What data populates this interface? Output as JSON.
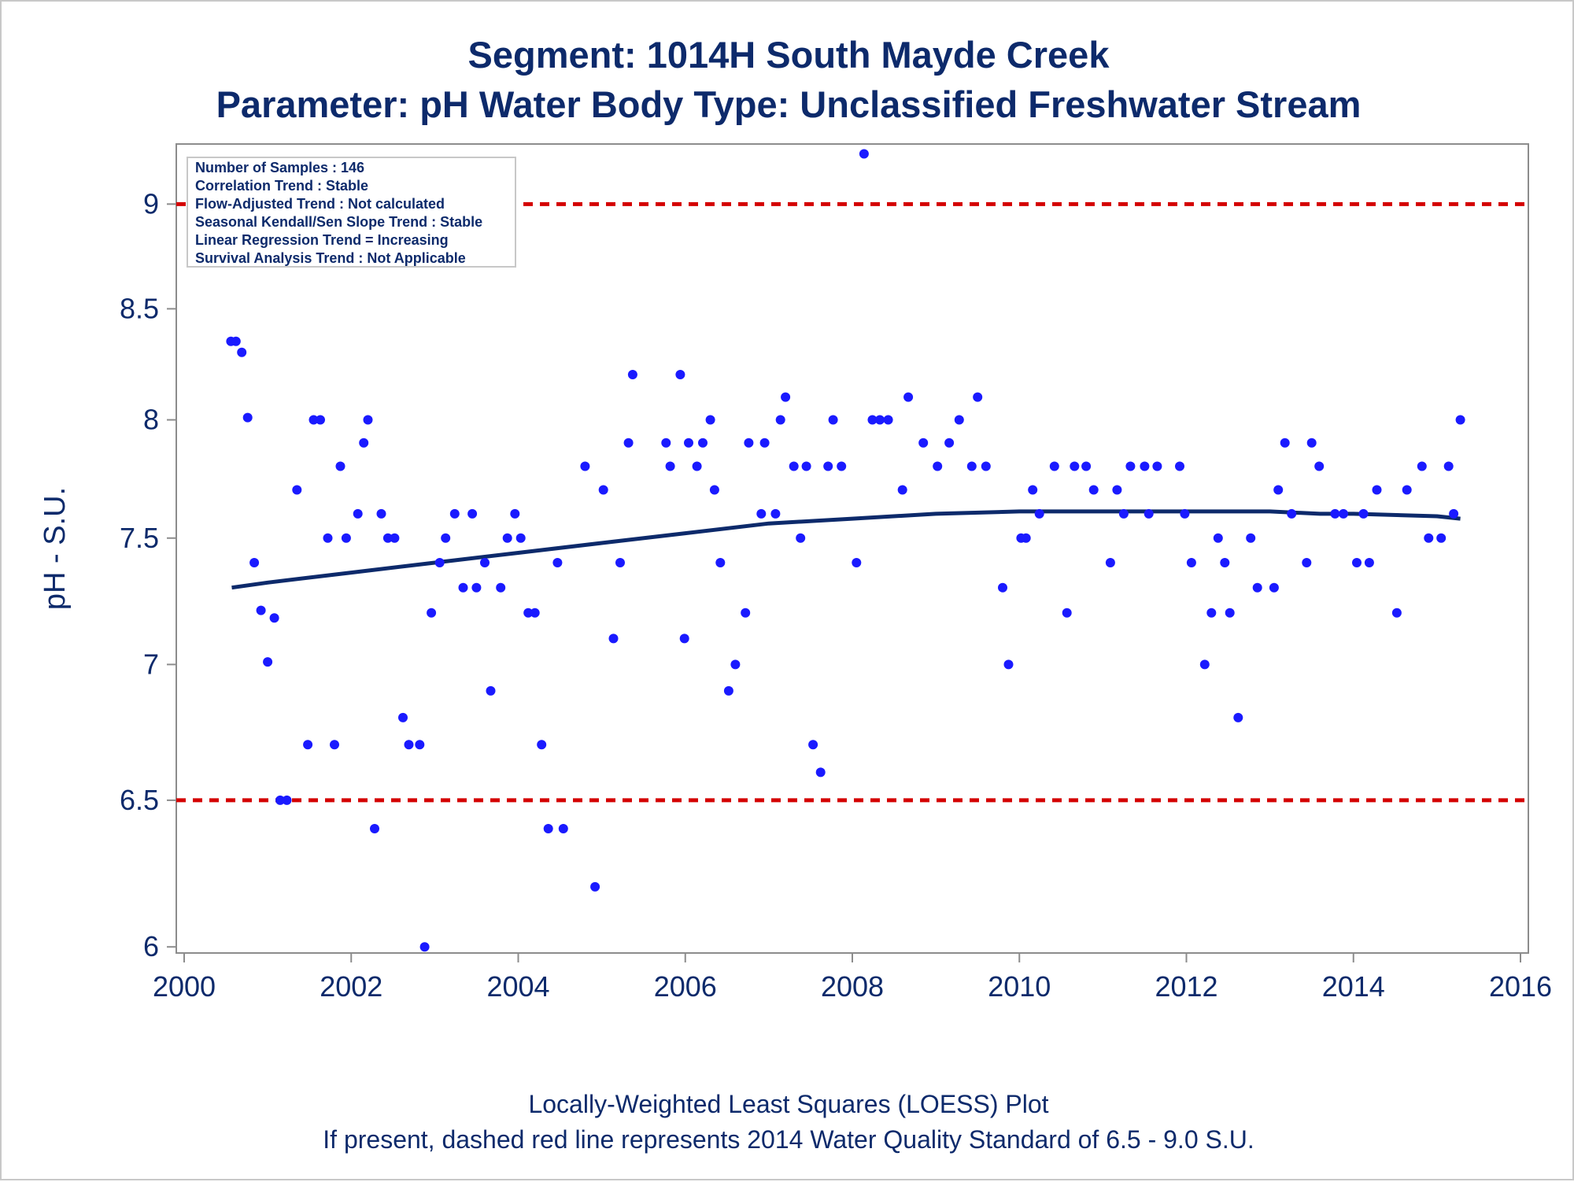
{
  "chart_data": {
    "type": "scatter",
    "title": "Segment: 1014H  South Mayde Creek",
    "subtitle": "Parameter: pH   Water Body Type: Unclassified Freshwater Stream",
    "xlabel": "",
    "ylabel": "pH - S.U.",
    "xlim": [
      2000,
      2016
    ],
    "ylim": [
      5.98,
      9.3
    ],
    "xticks": [
      "2000",
      "2002",
      "2004",
      "2006",
      "2008",
      "2010",
      "2012",
      "2014",
      "2016"
    ],
    "yticks": [
      "6",
      "6.5",
      "7",
      "7.5",
      "8",
      "8.5",
      "9"
    ],
    "y_scale": "log",
    "grid": false,
    "stats_box": [
      "Number of Samples : 146",
      "Correlation Trend : Stable",
      "Flow-Adjusted Trend : Not calculated",
      "Seasonal Kendall/Sen Slope Trend : Stable",
      "Linear Regression Trend = Increasing",
      "Survival Analysis Trend : Not Applicable"
    ],
    "footnotes": [
      "Locally-Weighted Least Squares (LOESS) Plot",
      "If present, dashed red line represents 2014 Water Quality Standard of 6.5 - 9.0 S.U."
    ],
    "standards": [
      {
        "value": 9.0,
        "style": "dashed",
        "color": "#d40000"
      },
      {
        "value": 6.5,
        "style": "dashed",
        "color": "#d40000"
      }
    ],
    "series": [
      {
        "type": "scatter",
        "color": "#1a1aff",
        "points": [
          [
            2000.56,
            8.35
          ],
          [
            2000.62,
            8.35
          ],
          [
            2000.69,
            8.3
          ],
          [
            2000.76,
            8.01
          ],
          [
            2000.84,
            7.4
          ],
          [
            2000.92,
            7.21
          ],
          [
            2001.0,
            7.01
          ],
          [
            2001.08,
            7.18
          ],
          [
            2001.15,
            6.5
          ],
          [
            2001.23,
            6.5
          ],
          [
            2001.35,
            7.7
          ],
          [
            2001.48,
            6.7
          ],
          [
            2001.55,
            8.0
          ],
          [
            2001.63,
            8.0
          ],
          [
            2001.72,
            7.5
          ],
          [
            2001.8,
            6.7
          ],
          [
            2001.87,
            7.8
          ],
          [
            2001.94,
            7.5
          ],
          [
            2002.08,
            7.6
          ],
          [
            2002.15,
            7.9
          ],
          [
            2002.2,
            8.0
          ],
          [
            2002.28,
            6.4
          ],
          [
            2002.36,
            7.6
          ],
          [
            2002.44,
            7.5
          ],
          [
            2002.52,
            7.5
          ],
          [
            2002.62,
            6.8
          ],
          [
            2002.69,
            6.7
          ],
          [
            2002.82,
            6.7
          ],
          [
            2002.88,
            6.0
          ],
          [
            2002.96,
            7.2
          ],
          [
            2003.06,
            7.4
          ],
          [
            2003.13,
            7.5
          ],
          [
            2003.24,
            7.6
          ],
          [
            2003.34,
            7.3
          ],
          [
            2003.45,
            7.6
          ],
          [
            2003.5,
            7.3
          ],
          [
            2003.6,
            7.4
          ],
          [
            2003.67,
            6.9
          ],
          [
            2003.79,
            7.3
          ],
          [
            2003.87,
            7.5
          ],
          [
            2003.96,
            7.6
          ],
          [
            2004.03,
            7.5
          ],
          [
            2004.12,
            7.2
          ],
          [
            2004.2,
            7.2
          ],
          [
            2004.28,
            6.7
          ],
          [
            2004.36,
            6.4
          ],
          [
            2004.47,
            7.4
          ],
          [
            2004.54,
            6.4
          ],
          [
            2004.8,
            7.8
          ],
          [
            2004.92,
            6.2
          ],
          [
            2005.02,
            7.7
          ],
          [
            2005.14,
            7.1
          ],
          [
            2005.22,
            7.4
          ],
          [
            2005.32,
            7.9
          ],
          [
            2005.37,
            8.2
          ],
          [
            2005.77,
            7.9
          ],
          [
            2005.82,
            7.8
          ],
          [
            2005.94,
            8.2
          ],
          [
            2005.99,
            7.1
          ],
          [
            2006.04,
            7.9
          ],
          [
            2006.14,
            7.8
          ],
          [
            2006.21,
            7.9
          ],
          [
            2006.3,
            8.0
          ],
          [
            2006.35,
            7.7
          ],
          [
            2006.42,
            7.4
          ],
          [
            2006.52,
            6.9
          ],
          [
            2006.6,
            7.0
          ],
          [
            2006.72,
            7.2
          ],
          [
            2006.76,
            7.9
          ],
          [
            2006.91,
            7.6
          ],
          [
            2006.95,
            7.9
          ],
          [
            2007.08,
            7.6
          ],
          [
            2007.14,
            8.0
          ],
          [
            2007.2,
            8.1
          ],
          [
            2007.3,
            7.8
          ],
          [
            2007.38,
            7.5
          ],
          [
            2007.45,
            7.8
          ],
          [
            2007.53,
            6.7
          ],
          [
            2007.62,
            6.6
          ],
          [
            2007.71,
            7.8
          ],
          [
            2007.77,
            8.0
          ],
          [
            2007.87,
            7.8
          ],
          [
            2008.05,
            7.4
          ],
          [
            2008.14,
            9.25
          ],
          [
            2008.24,
            8.0
          ],
          [
            2008.33,
            8.0
          ],
          [
            2008.43,
            8.0
          ],
          [
            2008.6,
            7.7
          ],
          [
            2008.67,
            8.1
          ],
          [
            2008.85,
            7.9
          ],
          [
            2009.02,
            7.8
          ],
          [
            2009.16,
            7.9
          ],
          [
            2009.28,
            8.0
          ],
          [
            2009.43,
            7.8
          ],
          [
            2009.5,
            8.1
          ],
          [
            2009.6,
            7.8
          ],
          [
            2009.8,
            7.3
          ],
          [
            2009.87,
            7.0
          ],
          [
            2010.02,
            7.5
          ],
          [
            2010.08,
            7.5
          ],
          [
            2010.16,
            7.7
          ],
          [
            2010.24,
            7.6
          ],
          [
            2010.42,
            7.8
          ],
          [
            2010.57,
            7.2
          ],
          [
            2010.66,
            7.8
          ],
          [
            2010.8,
            7.8
          ],
          [
            2010.89,
            7.7
          ],
          [
            2011.09,
            7.4
          ],
          [
            2011.17,
            7.7
          ],
          [
            2011.25,
            7.6
          ],
          [
            2011.33,
            7.8
          ],
          [
            2011.5,
            7.8
          ],
          [
            2011.55,
            7.6
          ],
          [
            2011.65,
            7.8
          ],
          [
            2011.92,
            7.8
          ],
          [
            2011.98,
            7.6
          ],
          [
            2012.06,
            7.4
          ],
          [
            2012.22,
            7.0
          ],
          [
            2012.3,
            7.2
          ],
          [
            2012.38,
            7.5
          ],
          [
            2012.46,
            7.4
          ],
          [
            2012.52,
            7.2
          ],
          [
            2012.62,
            6.8
          ],
          [
            2012.77,
            7.5
          ],
          [
            2012.85,
            7.3
          ],
          [
            2013.05,
            7.3
          ],
          [
            2013.1,
            7.7
          ],
          [
            2013.18,
            7.9
          ],
          [
            2013.26,
            7.6
          ],
          [
            2013.44,
            7.4
          ],
          [
            2013.5,
            7.9
          ],
          [
            2013.59,
            7.8
          ],
          [
            2013.78,
            7.6
          ],
          [
            2013.88,
            7.6
          ],
          [
            2014.04,
            7.4
          ],
          [
            2014.12,
            7.6
          ],
          [
            2014.19,
            7.4
          ],
          [
            2014.28,
            7.7
          ],
          [
            2014.52,
            7.2
          ],
          [
            2014.64,
            7.7
          ],
          [
            2014.82,
            7.8
          ],
          [
            2014.9,
            7.5
          ],
          [
            2015.05,
            7.5
          ],
          [
            2015.14,
            7.8
          ],
          [
            2015.2,
            7.6
          ],
          [
            2015.28,
            8.0
          ]
        ]
      },
      {
        "type": "line",
        "color": "#0d2a6b",
        "points": [
          [
            2000.57,
            7.3
          ],
          [
            2001.0,
            7.32
          ],
          [
            2002.0,
            7.36
          ],
          [
            2003.0,
            7.4
          ],
          [
            2004.0,
            7.44
          ],
          [
            2005.0,
            7.48
          ],
          [
            2006.0,
            7.52
          ],
          [
            2007.0,
            7.56
          ],
          [
            2008.0,
            7.58
          ],
          [
            2009.0,
            7.6
          ],
          [
            2010.0,
            7.61
          ],
          [
            2011.0,
            7.61
          ],
          [
            2012.0,
            7.61
          ],
          [
            2013.0,
            7.61
          ],
          [
            2013.6,
            7.6
          ],
          [
            2014.0,
            7.6
          ],
          [
            2015.0,
            7.59
          ],
          [
            2015.28,
            7.58
          ]
        ]
      }
    ]
  }
}
